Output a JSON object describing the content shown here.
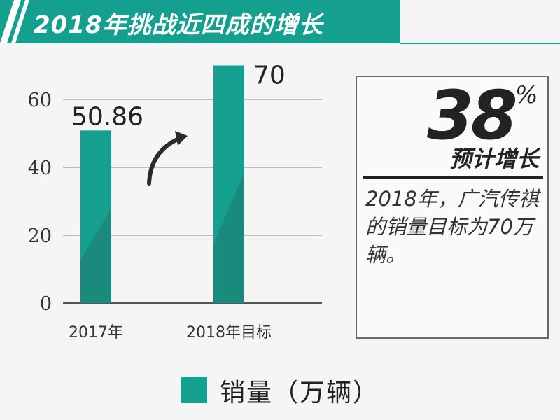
{
  "banner": {
    "title": "2018年挑战近四成的增长"
  },
  "chart_data": {
    "type": "bar",
    "categories": [
      "2017年",
      "2018年目标"
    ],
    "series": [
      {
        "name": "销量（万辆）",
        "values": [
          50.86,
          70
        ]
      }
    ],
    "data_labels": [
      "50.86",
      "70"
    ],
    "yticks": [
      "0",
      "20",
      "40",
      "60"
    ],
    "ylim": [
      0,
      75
    ],
    "grid": true,
    "legend_position": "bottom",
    "bar_color": "#159f8f",
    "bar_shade_color": "#1a8a7c"
  },
  "infobox": {
    "big_number": "38",
    "percent_sign": "%",
    "subtitle": "预计增长",
    "text": "2018年，广汽传祺的销量目标为70万辆。"
  },
  "legend": {
    "label": "销量（万辆）"
  },
  "colors": {
    "accent": "#159f8f",
    "accent_dark": "#1a8a7c",
    "background": "#f5f5f5"
  }
}
